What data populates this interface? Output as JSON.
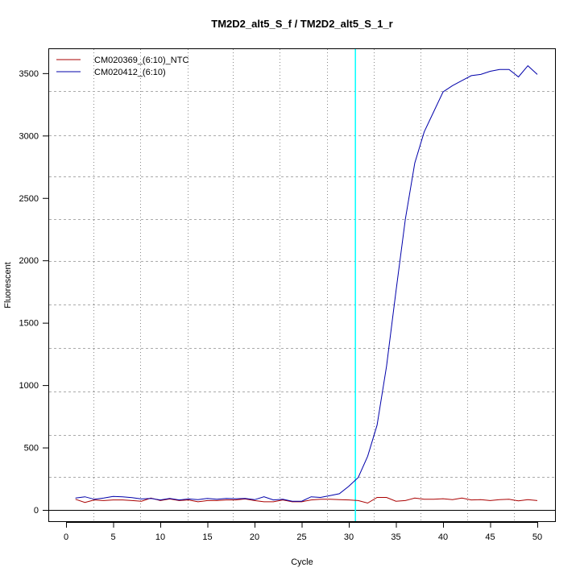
{
  "chart_data": {
    "type": "line",
    "title": "TM2D2_alt5_S_f / TM2D2_alt5_S_1_r",
    "xlabel": "Cycle",
    "ylabel": "Fluorescent",
    "xlim": [
      -2,
      52.5
    ],
    "ylim": [
      -90,
      3710
    ],
    "xticks": [
      0,
      5,
      10,
      15,
      20,
      25,
      30,
      35,
      40,
      45,
      50
    ],
    "yticks": [
      0,
      500,
      1000,
      1500,
      2000,
      2500,
      3000,
      3500
    ],
    "threshold_cycle": 30.7,
    "threshold_color": "#00ffff",
    "grid": true,
    "legend_position": "top-left",
    "x": [
      1,
      2,
      3,
      4,
      5,
      6,
      7,
      8,
      9,
      10,
      11,
      12,
      13,
      14,
      15,
      16,
      17,
      18,
      19,
      20,
      21,
      22,
      23,
      24,
      25,
      26,
      27,
      28,
      29,
      30,
      31,
      32,
      33,
      34,
      35,
      36,
      37,
      38,
      39,
      40,
      41,
      42,
      43,
      44,
      45,
      46,
      47,
      48,
      49,
      50
    ],
    "series": [
      {
        "name": "CM020369_(6:10)_NTC",
        "color": "#aa0000",
        "values": [
          85,
          60,
          80,
          75,
          80,
          80,
          75,
          70,
          95,
          75,
          88,
          75,
          80,
          65,
          75,
          75,
          80,
          80,
          88,
          75,
          65,
          65,
          80,
          65,
          65,
          80,
          85,
          85,
          82,
          80,
          75,
          55,
          100,
          100,
          70,
          75,
          95,
          85,
          85,
          90,
          82,
          95,
          80,
          82,
          75,
          82,
          85,
          72,
          82,
          75
        ]
      },
      {
        "name": "CM020412_(6:10)",
        "color": "#0000aa",
        "values": [
          95,
          105,
          85,
          95,
          108,
          105,
          98,
          88,
          92,
          80,
          92,
          80,
          88,
          82,
          92,
          85,
          92,
          90,
          92,
          82,
          105,
          80,
          85,
          70,
          70,
          105,
          100,
          115,
          130,
          190,
          260,
          430,
          680,
          1150,
          1750,
          2330,
          2780,
          3030,
          3190,
          3350,
          3400,
          3440,
          3480,
          3490,
          3515,
          3530,
          3530,
          3470,
          3560,
          3490
        ]
      }
    ]
  }
}
